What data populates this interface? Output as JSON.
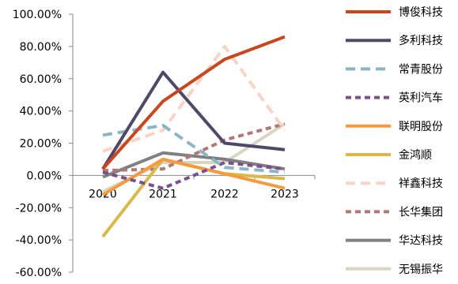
{
  "chart_data": {
    "type": "line",
    "x": [
      "2020",
      "2021",
      "2022",
      "2023"
    ],
    "ylim": [
      -60,
      100
    ],
    "y_tick_values": [
      100,
      80,
      60,
      40,
      20,
      0,
      -20,
      -40,
      -60
    ],
    "y_tick_labels": [
      "100.00%",
      "80.00%",
      "60.00%",
      "40.00%",
      "20.00%",
      "0.00%",
      "-20.00%",
      "-40.00%",
      "-60.00%"
    ],
    "legend_position": "right",
    "grid": false,
    "series": [
      {
        "name": "博俊科技",
        "color": "#C9461E",
        "dash": "solid",
        "values": [
          4,
          46,
          72,
          86
        ]
      },
      {
        "name": "多利科技",
        "color": "#4F4868",
        "dash": "solid",
        "values": [
          4,
          64,
          20,
          16
        ]
      },
      {
        "name": "常青股份",
        "color": "#8CB5C8",
        "dash": "dashed",
        "values": [
          25,
          31,
          5,
          2
        ]
      },
      {
        "name": "英利汽车",
        "color": "#7C4F8C",
        "dash": "dotted",
        "values": [
          2,
          -8,
          8,
          4
        ]
      },
      {
        "name": "联明股份",
        "color": "#F59A3E",
        "dash": "solid",
        "values": [
          -12,
          10,
          1,
          -8
        ]
      },
      {
        "name": "金鸿顺",
        "color": "#D9B94A",
        "dash": "solid",
        "values": [
          -38,
          10,
          1,
          -2
        ]
      },
      {
        "name": "祥鑫科技",
        "color": "#FAD3C4",
        "dash": "dashed",
        "values": [
          15,
          28,
          80,
          28
        ]
      },
      {
        "name": "长华集团",
        "color": "#B07878",
        "dash": "dotted",
        "values": [
          3,
          4,
          22,
          32
        ]
      },
      {
        "name": "华达科技",
        "color": "#808080",
        "dash": "solid",
        "values": [
          -1,
          14,
          10,
          4
        ]
      },
      {
        "name": "无锡振华",
        "color": "#DAD5C2",
        "dash": "solid",
        "values": [
          -10,
          8,
          8,
          32
        ]
      }
    ]
  }
}
